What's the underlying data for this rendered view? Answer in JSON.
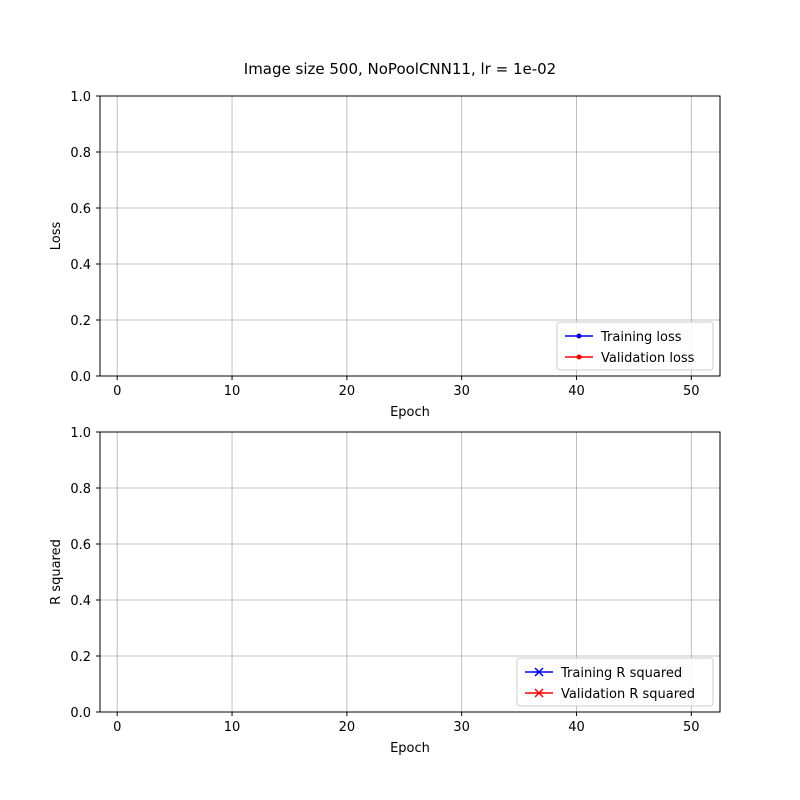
{
  "figure_title": "Image size 500, NoPoolCNN11, lr = 1e-02",
  "chart_data": [
    {
      "type": "line",
      "title": "",
      "xlabel": "Epoch",
      "ylabel": "Loss",
      "xlim": [
        -1.5,
        52.5
      ],
      "ylim": [
        0,
        1
      ],
      "xticks": [
        0,
        10,
        20,
        30,
        40,
        50
      ],
      "yticks": [
        0.0,
        0.2,
        0.4,
        0.6,
        0.8,
        1.0
      ],
      "ytick_labels": [
        "0.0",
        "0.2",
        "0.4",
        "0.6",
        "0.8",
        "1.0"
      ],
      "grid": true,
      "legend_position": "bottom-right",
      "series": [
        {
          "name": "Training loss",
          "color": "#0000ff",
          "marker": "point",
          "x": [],
          "y": []
        },
        {
          "name": "Validation loss",
          "color": "#ff0000",
          "marker": "point",
          "x": [],
          "y": []
        }
      ]
    },
    {
      "type": "line",
      "title": "",
      "xlabel": "Epoch",
      "ylabel": "R squared",
      "xlim": [
        -1.5,
        52.5
      ],
      "ylim": [
        0,
        1
      ],
      "xticks": [
        0,
        10,
        20,
        30,
        40,
        50
      ],
      "yticks": [
        0.0,
        0.2,
        0.4,
        0.6,
        0.8,
        1.0
      ],
      "ytick_labels": [
        "0.0",
        "0.2",
        "0.4",
        "0.6",
        "0.8",
        "1.0"
      ],
      "grid": true,
      "legend_position": "bottom-right",
      "series": [
        {
          "name": "Training R squared",
          "color": "#0000ff",
          "marker": "x",
          "x": [],
          "y": []
        },
        {
          "name": "Validation R squared",
          "color": "#ff0000",
          "marker": "x",
          "x": [],
          "y": []
        }
      ]
    }
  ]
}
